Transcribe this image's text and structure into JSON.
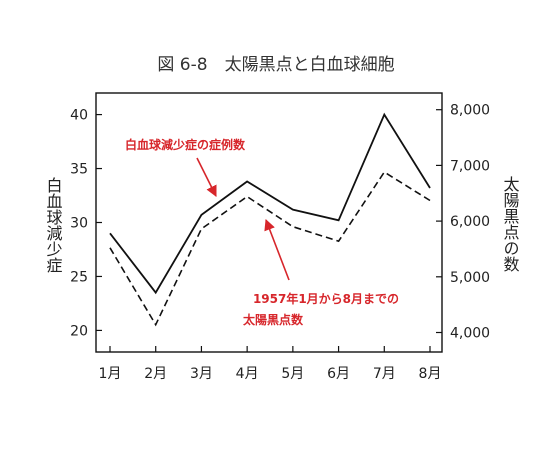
{
  "chart_data": {
    "type": "line",
    "title": "図 6-8　太陽黒点と白血球細胞",
    "categories": [
      "1月",
      "2月",
      "3月",
      "4月",
      "5月",
      "6月",
      "7月",
      "8月"
    ],
    "left_axis": {
      "label": "白血球減少症",
      "ylim": [
        18,
        42
      ],
      "ticks": [
        "20",
        "25",
        "30",
        "35",
        "40"
      ],
      "tick_values": [
        20,
        25,
        30,
        35,
        40
      ]
    },
    "right_axis": {
      "label": "太陽黒点の数",
      "ylim": [
        3650,
        8300
      ],
      "ticks": [
        "4,000",
        "5,000",
        "6,000",
        "7,000",
        "8,000"
      ],
      "tick_values": [
        4000,
        5000,
        6000,
        7000,
        8000
      ]
    },
    "series": [
      {
        "axis": "left",
        "style": "solid",
        "values": [
          29.0,
          23.5,
          30.7,
          33.8,
          31.2,
          30.2,
          40.0,
          33.2
        ]
      },
      {
        "axis": "right",
        "style": "dashed",
        "values": [
          5520,
          4140,
          5860,
          6440,
          5900,
          5640,
          6880,
          6370
        ]
      }
    ],
    "annotations": [
      {
        "text_lines": [
          "白血球減少症の症例数"
        ],
        "target_series": 0
      },
      {
        "text_lines": [
          "1957年1月から8月までの",
          "太陽黒点数"
        ],
        "target_series": 1
      }
    ],
    "annotation_color": "#d7262b",
    "grid": false
  }
}
